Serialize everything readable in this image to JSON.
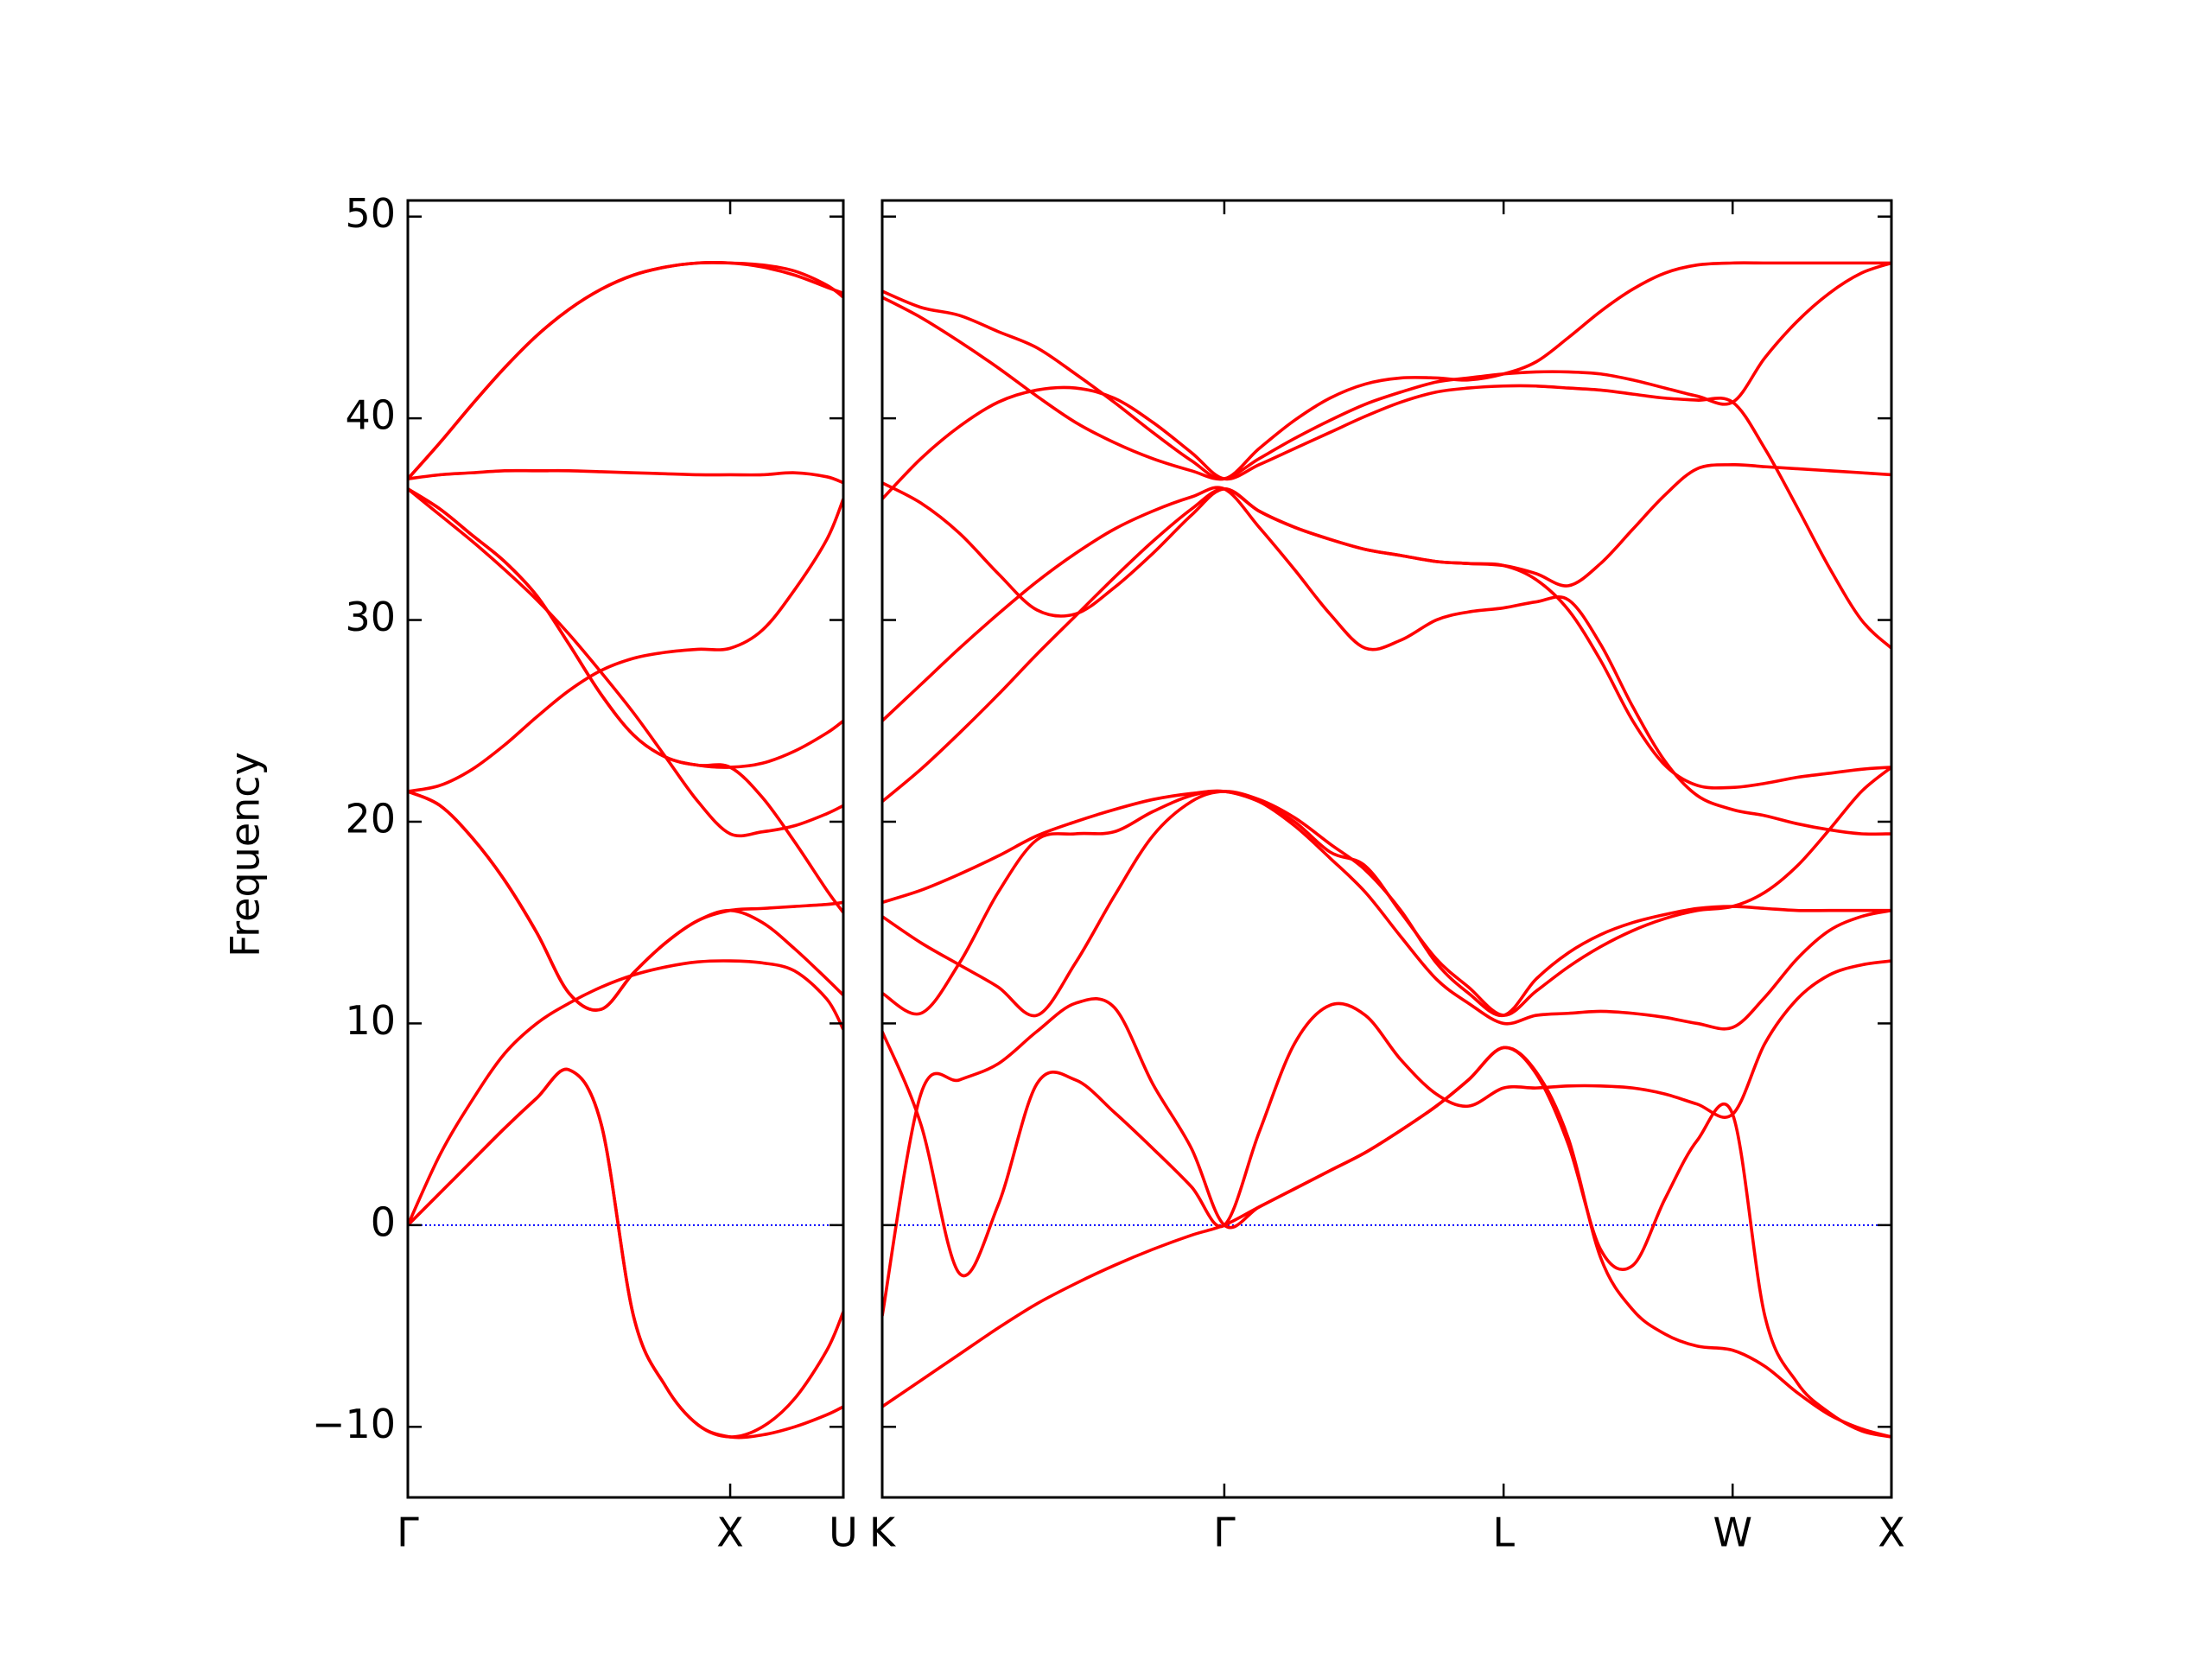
{
  "chart_data": [
    {
      "type": "line",
      "ylabel": "Frequency",
      "color": "#ff0000",
      "zero_line": true,
      "zero_line_color": "#0000ff",
      "ytick_labels": true,
      "x": [
        0,
        0.1,
        0.2,
        0.3,
        0.4,
        0.5,
        0.6,
        0.7,
        0.8,
        0.9,
        1.0,
        1.1,
        1.2,
        1.3,
        1.351
      ],
      "xlim": [
        0,
        1.351
      ],
      "xticks": [
        {
          "value": 0,
          "label": "Γ"
        },
        {
          "value": 1.0,
          "label": "X"
        },
        {
          "value": 1.351,
          "label": "U"
        }
      ],
      "ylim": [
        -13.5,
        50.8
      ],
      "yticks": [
        {
          "value": -10,
          "label": "−10"
        },
        0,
        10,
        20,
        30,
        40,
        50
      ],
      "series": [
        {
          "values": [
            37,
            38.8,
            40.7,
            42.5,
            44.1,
            45.4,
            46.4,
            47.1,
            47.5,
            47.7,
            47.7,
            47.5,
            47.1,
            46.5,
            46.2
          ]
        },
        {
          "values": [
            37,
            38.8,
            40.7,
            42.5,
            44.1,
            45.4,
            46.4,
            47.1,
            47.5,
            47.7,
            47.7,
            47.6,
            47.3,
            46.6,
            46.0
          ]
        },
        {
          "values": [
            37,
            37.2,
            37.3,
            37.4,
            37.4,
            37.4,
            37.35,
            37.3,
            37.25,
            37.2,
            37.2,
            37.2,
            37.3,
            37.1,
            36.8
          ]
        },
        {
          "values": [
            36.5,
            35.5,
            34.2,
            32.9,
            31.2,
            28.8,
            26.3,
            24.3,
            23.2,
            22.8,
            22.7,
            22.9,
            23.5,
            24.4,
            25.0
          ]
        },
        {
          "values": [
            36.5,
            35.5,
            34.2,
            32.9,
            31.2,
            28.8,
            26.3,
            24.3,
            23.2,
            22.8,
            22.7,
            21.2,
            19.0,
            16.6,
            15.5
          ]
        },
        {
          "values": [
            36.5,
            35.2,
            33.9,
            32.5,
            31.0,
            29.3,
            27.4,
            25.4,
            23.2,
            21.0,
            19.4,
            19.5,
            19.8,
            20.4,
            20.8
          ]
        },
        {
          "values": [
            21.5,
            21.8,
            22.6,
            23.8,
            25.2,
            26.5,
            27.5,
            28.1,
            28.4,
            28.55,
            28.6,
            29.5,
            31.5,
            34.0,
            36.0
          ]
        },
        {
          "values": [
            21.5,
            20.8,
            19.2,
            17.1,
            14.5,
            11.5,
            10.7,
            12.5,
            14.0,
            15.1,
            15.6,
            15.7,
            15.8,
            15.9,
            16.0
          ]
        },
        {
          "values": [
            21.5,
            20.8,
            19.2,
            17.1,
            14.5,
            11.5,
            10.7,
            12.5,
            14.0,
            15.1,
            15.6,
            15.0,
            13.7,
            12.2,
            11.4
          ]
        },
        {
          "values": [
            0,
            3.5,
            6.2,
            8.5,
            10.0,
            11.0,
            11.8,
            12.4,
            12.8,
            13.05,
            13.1,
            13.0,
            12.6,
            11.2,
            9.7
          ]
        },
        {
          "values": [
            0,
            1.6,
            3.2,
            4.8,
            6.3,
            7.7,
            5.0,
            -4.5,
            -8.0,
            -9.9,
            -10.5,
            -10.4,
            -10.0,
            -9.4,
            -9.0
          ]
        },
        {
          "values": [
            0,
            1.6,
            3.2,
            4.8,
            6.3,
            7.7,
            5.0,
            -4.5,
            -8.0,
            -9.9,
            -10.5,
            -10.0,
            -8.6,
            -6.2,
            -4.3
          ]
        }
      ]
    },
    {
      "type": "line",
      "color": "#ff0000",
      "zero_line": true,
      "zero_line_color": "#0000ff",
      "ytick_labels": false,
      "x": [
        0,
        0.12,
        0.24,
        0.36,
        0.48,
        0.6,
        0.72,
        0.84,
        0.96,
        1.062,
        1.17,
        1.28,
        1.39,
        1.5,
        1.61,
        1.72,
        1.82,
        1.929,
        2.03,
        2.13,
        2.23,
        2.33,
        2.43,
        2.53,
        2.64,
        2.74,
        2.84,
        2.94,
        3.04,
        3.133
      ],
      "xlim": [
        0,
        3.133
      ],
      "xticks": [
        {
          "value": 0,
          "label": "K"
        },
        {
          "value": 1.062,
          "label": "Γ"
        },
        {
          "value": 1.929,
          "label": "L"
        },
        {
          "value": 2.64,
          "label": "W"
        },
        {
          "value": 3.133,
          "label": "X"
        }
      ],
      "ylim": [
        -13.5,
        50.8
      ],
      "yticks": [
        -10,
        0,
        10,
        20,
        30,
        40,
        50
      ],
      "series": [
        {
          "values": [
            46.3,
            45.5,
            45.1,
            44.3,
            43.5,
            42.2,
            40.8,
            39.3,
            37.9,
            37.0,
            38.5,
            39.9,
            41.0,
            41.7,
            42.0,
            42.0,
            41.9,
            42.2,
            42.8,
            44.0,
            45.3,
            46.4,
            47.2,
            47.6,
            47.7,
            47.7,
            47.7,
            47.7,
            47.7,
            47.7
          ]
        },
        {
          "values": [
            46.0,
            45.0,
            43.8,
            42.5,
            41.1,
            39.8,
            38.8,
            38.0,
            37.4,
            37.0,
            38.0,
            39.0,
            39.9,
            40.7,
            41.3,
            41.8,
            42.0,
            42.2,
            42.3,
            42.3,
            42.2,
            41.9,
            41.5,
            41.1,
            40.8,
            43.0,
            44.8,
            46.2,
            47.2,
            47.7
          ]
        },
        {
          "values": [
            36.0,
            38.0,
            39.6,
            40.8,
            41.4,
            41.5,
            41.0,
            39.8,
            38.3,
            37.0,
            37.7,
            38.5,
            39.3,
            40.1,
            40.8,
            41.3,
            41.5,
            41.6,
            41.6,
            41.5,
            41.4,
            41.2,
            41.0,
            40.9,
            40.8,
            38.5,
            35.6,
            32.6,
            30.0,
            28.6
          ]
        },
        {
          "values": [
            36.8,
            35.8,
            34.3,
            32.3,
            30.5,
            30.3,
            31.6,
            33.3,
            35.2,
            36.5,
            35.4,
            34.6,
            34.0,
            33.5,
            33.2,
            32.9,
            32.8,
            32.7,
            32.3,
            31.7,
            32.8,
            34.5,
            36.2,
            37.5,
            37.7,
            37.6,
            37.5,
            37.4,
            37.3,
            37.2
          ]
        },
        {
          "values": [
            25.0,
            26.8,
            28.6,
            30.3,
            31.9,
            33.3,
            34.5,
            35.4,
            36.1,
            36.5,
            34.6,
            32.5,
            30.3,
            28.6,
            29.0,
            30.0,
            30.4,
            30.6,
            30.9,
            31.0,
            28.8,
            25.7,
            23.0,
            21.3,
            20.6,
            20.3,
            19.9,
            19.6,
            19.4,
            19.4
          ]
        },
        {
          "values": [
            21.0,
            22.6,
            24.4,
            26.3,
            28.3,
            30.2,
            32.1,
            33.9,
            35.5,
            36.5,
            35.4,
            34.6,
            34.0,
            33.5,
            33.2,
            32.9,
            32.8,
            32.7,
            32.0,
            30.5,
            28.0,
            25.0,
            22.8,
            21.8,
            21.7,
            21.9,
            22.2,
            22.4,
            22.6,
            22.7
          ]
        },
        {
          "values": [
            16.0,
            16.6,
            17.4,
            18.3,
            19.3,
            20.0,
            20.6,
            21.1,
            21.4,
            21.5,
            21.0,
            20.0,
            18.5,
            17.8,
            15.5,
            13.2,
            11.8,
            10.4,
            11.6,
            12.8,
            13.8,
            14.6,
            15.2,
            15.6,
            15.8,
            16.5,
            17.8,
            19.6,
            21.5,
            22.7
          ]
        },
        {
          "values": [
            11.5,
            10.5,
            13.0,
            16.5,
            19.1,
            19.4,
            19.5,
            20.5,
            21.3,
            21.5,
            21.0,
            19.8,
            18.2,
            16.5,
            14.3,
            12.2,
            11.0,
            10.0,
            10.4,
            10.5,
            10.6,
            10.5,
            10.3,
            10.0,
            9.8,
            11.3,
            13.2,
            14.6,
            15.3,
            15.6
          ]
        },
        {
          "values": [
            15.3,
            14.0,
            12.9,
            11.8,
            10.4,
            13.0,
            16.3,
            19.3,
            21.0,
            21.5,
            21.1,
            20.2,
            18.9,
            17.6,
            15.6,
            13.0,
            11.5,
            10.4,
            12.2,
            13.5,
            14.4,
            15.0,
            15.4,
            15.7,
            15.8,
            15.7,
            15.6,
            15.6,
            15.6,
            15.6
          ]
        },
        {
          "values": [
            9.6,
            5.0,
            -2.4,
            1.0,
            7.0,
            7.2,
            5.6,
            3.8,
            1.9,
            0,
            4.6,
            9.0,
            10.9,
            10.4,
            8.2,
            6.5,
            5.9,
            6.8,
            6.8,
            6.9,
            6.9,
            6.8,
            6.5,
            6.0,
            5.5,
            9.0,
            11.2,
            12.4,
            12.9,
            13.1
          ]
        },
        {
          "values": [
            -4.5,
            6.5,
            7.2,
            8.0,
            9.6,
            11.0,
            10.8,
            7.0,
            3.8,
            0,
            0.9,
            1.8,
            2.7,
            3.6,
            4.7,
            5.9,
            7.2,
            8.8,
            7.5,
            4.0,
            -1.2,
            -2.0,
            1.3,
            4.2,
            5.5,
            -4.5,
            -7.8,
            -9.3,
            -10.2,
            -10.5
          ]
        },
        {
          "values": [
            -9.0,
            -7.7,
            -6.4,
            -5.1,
            -3.9,
            -2.9,
            -2.0,
            -1.2,
            -0.5,
            0,
            0.9,
            1.8,
            2.7,
            3.6,
            4.7,
            5.9,
            7.2,
            8.8,
            7.6,
            4.3,
            -1.6,
            -4.2,
            -5.4,
            -6.0,
            -6.2,
            -7.0,
            -8.3,
            -9.4,
            -10.1,
            -10.5
          ]
        }
      ]
    }
  ]
}
